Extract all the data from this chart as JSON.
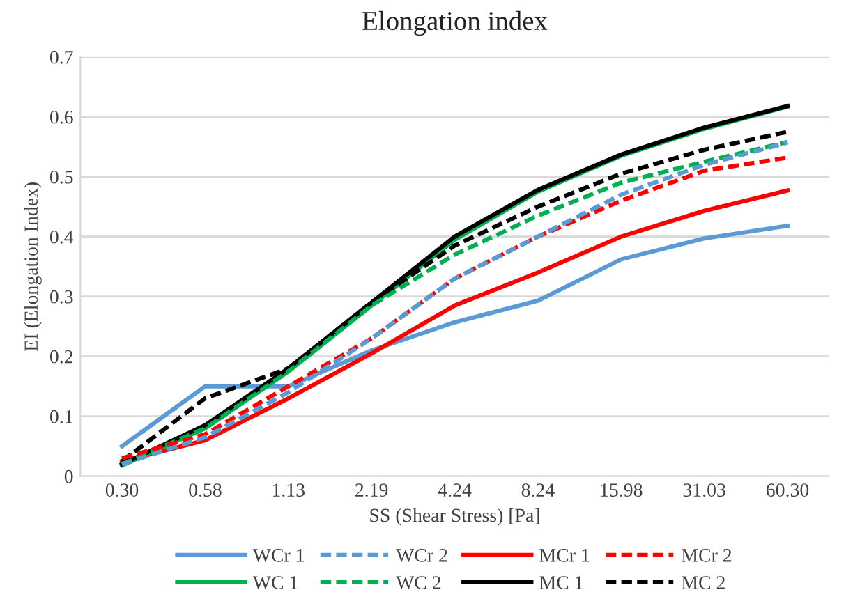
{
  "chart_data": {
    "type": "line",
    "title": "Elongation index",
    "xlabel": "SS (Shear Stress) [Pa]",
    "ylabel": "EI (Elongation Index)",
    "categories": [
      "0.30",
      "0.58",
      "1.13",
      "2.19",
      "4.24",
      "8.24",
      "15.98",
      "31.03",
      "60.30"
    ],
    "series": [
      {
        "name": "WCr 1",
        "color": "#5b9bd5",
        "line_style": "solid",
        "values": [
          0.05,
          0.15,
          0.15,
          0.21,
          0.257,
          0.293,
          0.362,
          0.397,
          0.418
        ]
      },
      {
        "name": "WCr 2",
        "color": "#5b9bd5",
        "line_style": "dashed",
        "values": [
          0.02,
          0.065,
          0.14,
          0.23,
          0.33,
          0.4,
          0.47,
          0.52,
          0.557
        ]
      },
      {
        "name": "MCr 1",
        "color": "#ff0000",
        "line_style": "solid",
        "values": [
          0.025,
          0.06,
          0.13,
          0.205,
          0.285,
          0.34,
          0.4,
          0.443,
          0.477
        ]
      },
      {
        "name": "MCr 2",
        "color": "#ff0000",
        "line_style": "dashed",
        "values": [
          0.03,
          0.07,
          0.15,
          0.23,
          0.33,
          0.4,
          0.46,
          0.51,
          0.532
        ]
      },
      {
        "name": "WC 1",
        "color": "#00b050",
        "line_style": "solid",
        "values": [
          0.018,
          0.08,
          0.175,
          0.285,
          0.395,
          0.475,
          0.535,
          0.58,
          0.617
        ]
      },
      {
        "name": "WC 2",
        "color": "#00b050",
        "line_style": "dashed",
        "values": [
          0.02,
          0.08,
          0.175,
          0.285,
          0.37,
          0.435,
          0.49,
          0.525,
          0.558
        ]
      },
      {
        "name": "MC 1",
        "color": "#000000",
        "line_style": "solid",
        "values": [
          0.02,
          0.085,
          0.18,
          0.29,
          0.4,
          0.478,
          0.537,
          0.582,
          0.618
        ]
      },
      {
        "name": "MC 2",
        "color": "#000000",
        "line_style": "dashed",
        "values": [
          0.025,
          0.13,
          0.18,
          0.29,
          0.385,
          0.45,
          0.505,
          0.545,
          0.575
        ]
      }
    ],
    "ylim": [
      0,
      0.7
    ],
    "yticks": [
      0,
      0.1,
      0.2,
      0.3,
      0.4,
      0.5,
      0.6,
      0.7
    ],
    "grid": "y",
    "legend": "bottom",
    "marker": "none"
  }
}
